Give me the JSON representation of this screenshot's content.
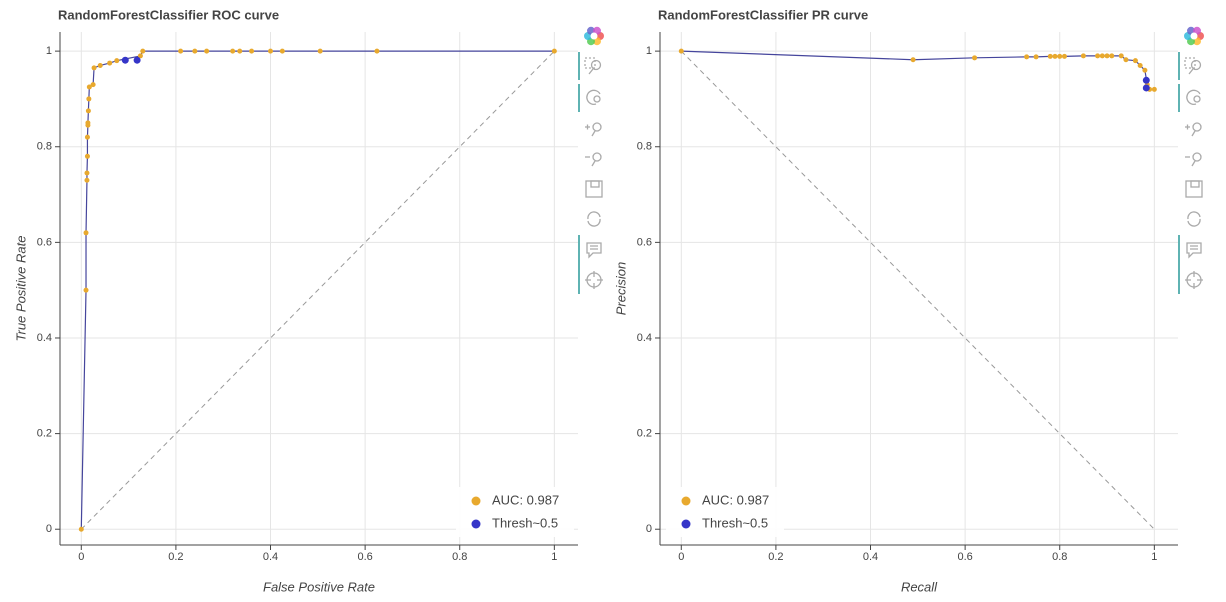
{
  "chart_data": [
    {
      "type": "line",
      "title": "RandomForestClassifier ROC curve",
      "x_label": "False Positive Rate",
      "y_label": "True Positive Rate",
      "xlim": [
        -0.045,
        1.05
      ],
      "ylim": [
        -0.033,
        1.04
      ],
      "xticks": [
        0,
        0.2,
        0.4,
        0.6,
        0.8,
        1
      ],
      "yticks": [
        0,
        0.2,
        0.4,
        0.6,
        0.8,
        1
      ],
      "grid": true,
      "legend": "bottom-right",
      "line_color": "#45459c",
      "series": [
        {
          "name": "AUC: 0.987",
          "color": "#e8a92e",
          "x": [
            0,
            0.01,
            0.01,
            0.012,
            0.012,
            0.013,
            0.013,
            0.014,
            0.014,
            0.015,
            0.016,
            0.017,
            0.025,
            0.027,
            0.04,
            0.06,
            0.075,
            0.125,
            0.13,
            0.21,
            0.24,
            0.265,
            0.32,
            0.335,
            0.36,
            0.4,
            0.425,
            0.505,
            0.625,
            1
          ],
          "values": [
            0,
            0.5,
            0.62,
            0.73,
            0.745,
            0.78,
            0.82,
            0.845,
            0.85,
            0.875,
            0.9,
            0.925,
            0.93,
            0.965,
            0.97,
            0.975,
            0.98,
            0.99,
            1,
            1,
            1,
            1,
            1,
            1,
            1,
            1,
            1,
            1,
            1,
            1
          ]
        },
        {
          "name": "Thresh~0.5",
          "color": "#3535c8",
          "x": [
            0.093,
            0.118
          ],
          "values": [
            0.981,
            0.981
          ]
        }
      ]
    },
    {
      "type": "line",
      "title": "RandomForestClassifier PR curve",
      "x_label": "Recall",
      "y_label": "Precision",
      "xlim": [
        -0.045,
        1.05
      ],
      "ylim": [
        -0.033,
        1.04
      ],
      "xticks": [
        0,
        0.2,
        0.4,
        0.6,
        0.8,
        1
      ],
      "yticks": [
        0,
        0.2,
        0.4,
        0.6,
        0.8,
        1
      ],
      "grid": true,
      "legend": "bottom-left",
      "line_color": "#45459c",
      "series": [
        {
          "name": "AUC: 0.987",
          "color": "#e8a92e",
          "x": [
            0,
            0.49,
            0.62,
            0.73,
            0.75,
            0.78,
            0.79,
            0.8,
            0.81,
            0.85,
            0.88,
            0.89,
            0.9,
            0.91,
            0.93,
            0.94,
            0.96,
            0.97,
            0.98,
            0.985,
            0.99,
            1
          ],
          "values": [
            1,
            0.982,
            0.986,
            0.988,
            0.988,
            0.989,
            0.989,
            0.989,
            0.989,
            0.99,
            0.99,
            0.99,
            0.99,
            0.99,
            0.99,
            0.982,
            0.98,
            0.97,
            0.96,
            0.93,
            0.92,
            0.92
          ]
        },
        {
          "name": "Thresh~0.5",
          "color": "#3535c8",
          "x": [
            0.983,
            0.983
          ],
          "values": [
            0.939,
            0.923
          ]
        }
      ]
    }
  ]
}
